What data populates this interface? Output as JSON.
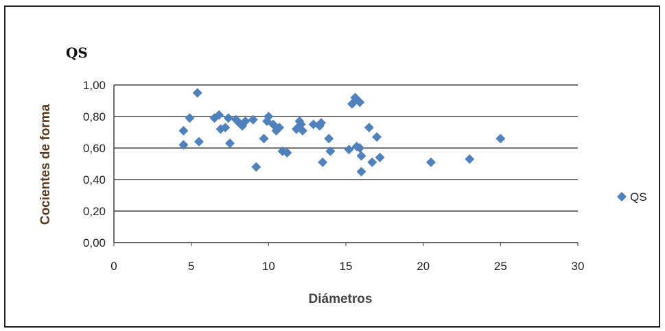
{
  "chart_data": {
    "type": "scatter",
    "title": "QS",
    "xlabel": "Diámetros",
    "ylabel": "Cocientes de forma",
    "xlim": [
      0,
      30
    ],
    "ylim": [
      0,
      1
    ],
    "x_ticks": [
      "0",
      "5",
      "10",
      "15",
      "20",
      "25",
      "30"
    ],
    "y_ticks": [
      "0,00",
      "0,20",
      "0,40",
      "0,60",
      "0,80",
      "1,00"
    ],
    "grid": "horizontal",
    "legend_position": "right",
    "series": [
      {
        "name": "QS",
        "color": "#4f81bd",
        "marker": "diamond",
        "points": [
          [
            4.5,
            0.71
          ],
          [
            4.5,
            0.62
          ],
          [
            4.9,
            0.79
          ],
          [
            5.4,
            0.95
          ],
          [
            5.5,
            0.64
          ],
          [
            6.5,
            0.79
          ],
          [
            6.8,
            0.81
          ],
          [
            6.9,
            0.72
          ],
          [
            7.2,
            0.73
          ],
          [
            7.4,
            0.79
          ],
          [
            7.5,
            0.63
          ],
          [
            7.9,
            0.78
          ],
          [
            8.1,
            0.76
          ],
          [
            8.3,
            0.74
          ],
          [
            8.5,
            0.77
          ],
          [
            9.0,
            0.78
          ],
          [
            9.2,
            0.48
          ],
          [
            9.7,
            0.66
          ],
          [
            9.9,
            0.77
          ],
          [
            10.0,
            0.8
          ],
          [
            10.3,
            0.75
          ],
          [
            10.5,
            0.71
          ],
          [
            10.7,
            0.73
          ],
          [
            10.9,
            0.58
          ],
          [
            11.2,
            0.57
          ],
          [
            11.8,
            0.72
          ],
          [
            12.0,
            0.77
          ],
          [
            12.1,
            0.75
          ],
          [
            12.2,
            0.71
          ],
          [
            12.9,
            0.75
          ],
          [
            13.3,
            0.74
          ],
          [
            13.4,
            0.76
          ],
          [
            13.5,
            0.51
          ],
          [
            13.9,
            0.66
          ],
          [
            14.0,
            0.58
          ],
          [
            15.2,
            0.59
          ],
          [
            15.4,
            0.88
          ],
          [
            15.6,
            0.92
          ],
          [
            15.7,
            0.61
          ],
          [
            15.9,
            0.89
          ],
          [
            15.9,
            0.6
          ],
          [
            16.0,
            0.55
          ],
          [
            16.0,
            0.45
          ],
          [
            16.5,
            0.73
          ],
          [
            16.7,
            0.51
          ],
          [
            17.0,
            0.67
          ],
          [
            17.2,
            0.54
          ],
          [
            20.5,
            0.51
          ],
          [
            23.0,
            0.53
          ],
          [
            25.0,
            0.66
          ]
        ]
      }
    ]
  }
}
